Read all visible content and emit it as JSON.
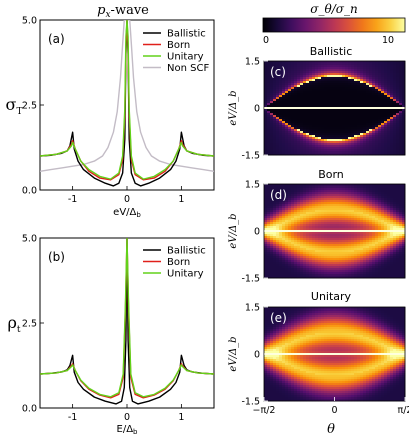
{
  "chart_data": [
    {
      "type": "line",
      "panel_label": "(a)",
      "title": "p_x-wave",
      "ylabel": "σ",
      "ylabel_sub": "T",
      "xlabel": "eV/Δ",
      "xlabel_sub": "b",
      "xlim": [
        -1.6,
        1.6
      ],
      "ylim": [
        0,
        5
      ],
      "xticks": [
        "-1",
        "0",
        "1"
      ],
      "yticks": [
        "0.0",
        "2.5",
        "5.0"
      ],
      "legend_position": "top-right",
      "series": [
        {
          "name": "Ballistic",
          "color": "#000000",
          "x": [
            -1.6,
            -1.4,
            -1.2,
            -1.1,
            -1.05,
            -1.0,
            -0.97,
            -0.9,
            -0.8,
            -0.6,
            -0.4,
            -0.25,
            -0.15,
            -0.08,
            -0.04,
            -0.02,
            0,
            0.02,
            0.04,
            0.08,
            0.15,
            0.25,
            0.4,
            0.6,
            0.8,
            0.9,
            0.97,
            1.0,
            1.05,
            1.1,
            1.2,
            1.4,
            1.6
          ],
          "y": [
            1.0,
            1.02,
            1.08,
            1.15,
            1.3,
            1.7,
            1.2,
            0.85,
            0.6,
            0.35,
            0.2,
            0.12,
            0.2,
            0.5,
            1.5,
            4.0,
            5.0,
            4.0,
            1.5,
            0.5,
            0.2,
            0.12,
            0.2,
            0.35,
            0.6,
            0.85,
            1.2,
            1.7,
            1.3,
            1.15,
            1.08,
            1.02,
            1.0
          ]
        },
        {
          "name": "Born",
          "color": "#e0201a",
          "x": [
            -1.6,
            -1.3,
            -1.1,
            -1.02,
            -1.0,
            -0.95,
            -0.85,
            -0.7,
            -0.5,
            -0.3,
            -0.15,
            -0.08,
            -0.04,
            -0.02,
            0,
            0.02,
            0.04,
            0.08,
            0.15,
            0.3,
            0.5,
            0.7,
            0.85,
            0.95,
            1.0,
            1.02,
            1.1,
            1.3,
            1.6
          ],
          "y": [
            1.0,
            1.05,
            1.15,
            1.35,
            1.45,
            1.2,
            0.85,
            0.55,
            0.35,
            0.3,
            0.45,
            0.9,
            2.2,
            4.2,
            5.0,
            4.2,
            2.2,
            0.9,
            0.45,
            0.3,
            0.35,
            0.55,
            0.85,
            1.2,
            1.45,
            1.35,
            1.15,
            1.05,
            1.0
          ]
        },
        {
          "name": "Unitary",
          "color": "#62d21a",
          "x": [
            -1.6,
            -1.3,
            -1.1,
            -1.02,
            -1.0,
            -0.95,
            -0.85,
            -0.7,
            -0.5,
            -0.3,
            -0.15,
            -0.08,
            -0.04,
            -0.02,
            0,
            0.02,
            0.04,
            0.08,
            0.15,
            0.3,
            0.5,
            0.7,
            0.85,
            0.95,
            1.0,
            1.02,
            1.1,
            1.3,
            1.6
          ],
          "y": [
            1.0,
            1.05,
            1.15,
            1.3,
            1.4,
            1.2,
            0.85,
            0.6,
            0.4,
            0.32,
            0.5,
            1.0,
            2.4,
            4.5,
            5.0,
            4.5,
            2.4,
            1.0,
            0.5,
            0.32,
            0.4,
            0.6,
            0.85,
            1.2,
            1.4,
            1.3,
            1.15,
            1.05,
            1.0
          ]
        },
        {
          "name": "Non SCF",
          "color": "#c3bcc6",
          "x": [
            -1.6,
            -1.4,
            -1.2,
            -1.0,
            -0.8,
            -0.6,
            -0.45,
            -0.35,
            -0.25,
            -0.18,
            -0.12,
            -0.08,
            -0.05,
            0,
            0.05,
            0.08,
            0.12,
            0.18,
            0.25,
            0.35,
            0.45,
            0.6,
            0.8,
            1.0,
            1.2,
            1.4,
            1.6
          ],
          "y": [
            0.55,
            0.6,
            0.65,
            0.7,
            0.75,
            0.85,
            1.0,
            1.25,
            1.7,
            2.3,
            3.3,
            4.3,
            5.0,
            5.0,
            5.0,
            4.3,
            3.3,
            2.3,
            1.7,
            1.25,
            1.0,
            0.85,
            0.75,
            0.7,
            0.65,
            0.6,
            0.55
          ]
        }
      ]
    },
    {
      "type": "line",
      "panel_label": "(b)",
      "ylabel": "ρ",
      "ylabel_sub": "t",
      "xlabel": "E/Δ",
      "xlabel_sub": "b",
      "xlim": [
        -1.6,
        1.6
      ],
      "ylim": [
        0,
        5
      ],
      "xticks": [
        "-1",
        "0",
        "1"
      ],
      "yticks": [
        "0.0",
        "2.5",
        "5.0"
      ],
      "legend_position": "top-right",
      "series": [
        {
          "name": "Ballistic",
          "color": "#000000",
          "x": [
            -1.6,
            -1.4,
            -1.2,
            -1.1,
            -1.05,
            -1.0,
            -0.97,
            -0.9,
            -0.8,
            -0.6,
            -0.4,
            -0.2,
            -0.1,
            -0.05,
            -0.02,
            0,
            0.02,
            0.05,
            0.1,
            0.2,
            0.4,
            0.6,
            0.8,
            0.9,
            0.97,
            1.0,
            1.05,
            1.1,
            1.2,
            1.4,
            1.6
          ],
          "y": [
            1.0,
            1.02,
            1.06,
            1.12,
            1.25,
            1.55,
            1.05,
            0.75,
            0.55,
            0.32,
            0.2,
            0.12,
            0.2,
            0.6,
            2.0,
            5.0,
            2.0,
            0.6,
            0.2,
            0.12,
            0.2,
            0.32,
            0.55,
            0.75,
            1.05,
            1.55,
            1.25,
            1.12,
            1.06,
            1.02,
            1.0
          ]
        },
        {
          "name": "Born",
          "color": "#e0201a",
          "x": [
            -1.6,
            -1.3,
            -1.1,
            -1.02,
            -1.0,
            -0.95,
            -0.85,
            -0.7,
            -0.5,
            -0.3,
            -0.15,
            -0.07,
            -0.03,
            0,
            0.03,
            0.07,
            0.15,
            0.3,
            0.5,
            0.7,
            0.85,
            0.95,
            1.0,
            1.02,
            1.1,
            1.3,
            1.6
          ],
          "y": [
            1.0,
            1.03,
            1.1,
            1.25,
            1.3,
            1.1,
            0.8,
            0.55,
            0.38,
            0.3,
            0.4,
            0.9,
            2.8,
            5.0,
            2.8,
            0.9,
            0.4,
            0.3,
            0.38,
            0.55,
            0.8,
            1.1,
            1.3,
            1.25,
            1.1,
            1.03,
            1.0
          ]
        },
        {
          "name": "Unitary",
          "color": "#62d21a",
          "x": [
            -1.6,
            -1.3,
            -1.1,
            -1.02,
            -1.0,
            -0.95,
            -0.85,
            -0.7,
            -0.5,
            -0.3,
            -0.15,
            -0.07,
            -0.03,
            0,
            0.03,
            0.07,
            0.15,
            0.3,
            0.5,
            0.7,
            0.85,
            0.95,
            1.0,
            1.02,
            1.1,
            1.3,
            1.6
          ],
          "y": [
            1.0,
            1.03,
            1.1,
            1.22,
            1.27,
            1.1,
            0.82,
            0.58,
            0.4,
            0.33,
            0.45,
            1.0,
            3.0,
            5.0,
            3.0,
            1.0,
            0.45,
            0.33,
            0.4,
            0.58,
            0.82,
            1.1,
            1.27,
            1.22,
            1.1,
            1.03,
            1.0
          ]
        }
      ]
    },
    {
      "type": "heatmap",
      "panel_label": "(c)",
      "title": "Ballistic",
      "ylabel": "eV/Δ_b",
      "xlim": [
        -1.5708,
        1.5708
      ],
      "ylim": [
        -1.5,
        1.5
      ],
      "yticks": [
        "-1.5",
        "0",
        "1.5"
      ],
      "colormap": "inferno",
      "colorbar": {
        "label": "σ_θ/σ_n",
        "min": 0,
        "max": 10,
        "ticks": [
          "0",
          "10"
        ]
      },
      "features": {
        "gap_edge": "Δ(θ)=cos θ",
        "gap_interior": "dark",
        "zero_bias_peak": true
      }
    },
    {
      "type": "heatmap",
      "panel_label": "(d)",
      "title": "Born",
      "ylabel": "eV/Δ_b",
      "xlim": [
        -1.5708,
        1.5708
      ],
      "ylim": [
        -1.5,
        1.5
      ],
      "yticks": [
        "-1.5",
        "0",
        "1.5"
      ],
      "colormap": "inferno",
      "features": {
        "gap_edge": "broadened",
        "zero_bias_peak": true
      }
    },
    {
      "type": "heatmap",
      "panel_label": "(e)",
      "title": "Unitary",
      "ylabel": "eV/Δ_b",
      "xlabel": "θ",
      "xlim": [
        -1.5708,
        1.5708
      ],
      "ylim": [
        -1.5,
        1.5
      ],
      "xticks": [
        "−π/2",
        "0",
        "π/2"
      ],
      "yticks": [
        "-1.5",
        "0",
        "1.5"
      ],
      "colormap": "inferno",
      "features": {
        "gap_edge": "broadened",
        "zero_bias_peak": true
      }
    }
  ]
}
